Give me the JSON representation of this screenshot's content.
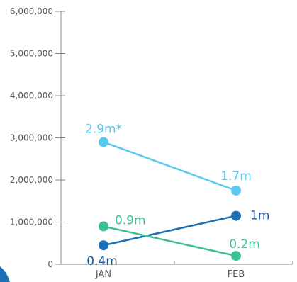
{
  "chart_data": {
    "type": "line",
    "categories": [
      "JAN",
      "FEB"
    ],
    "yticks": [
      "0",
      "1,000,000",
      "2,000,000",
      "3,000,000",
      "4,000,000",
      "5,000,000",
      "6,000,000"
    ],
    "ylim": [
      0,
      6000000
    ],
    "grid": false,
    "legend": "none",
    "series": [
      {
        "color": "#5bc8ef",
        "values": [
          2900000,
          1750000
        ],
        "labels": [
          "2.9m*",
          "1.7m"
        ],
        "label_color": "#5bc8ef"
      },
      {
        "color": "#1e6fb3",
        "values": [
          450000,
          1150000
        ],
        "labels": [
          "0.4m",
          "1m"
        ],
        "label_color": "#1a5a9a"
      },
      {
        "color": "#3bbf95",
        "values": [
          900000,
          200000
        ],
        "labels": [
          "0.9m",
          "0.2m"
        ],
        "label_color": "#3bbf95"
      }
    ]
  }
}
